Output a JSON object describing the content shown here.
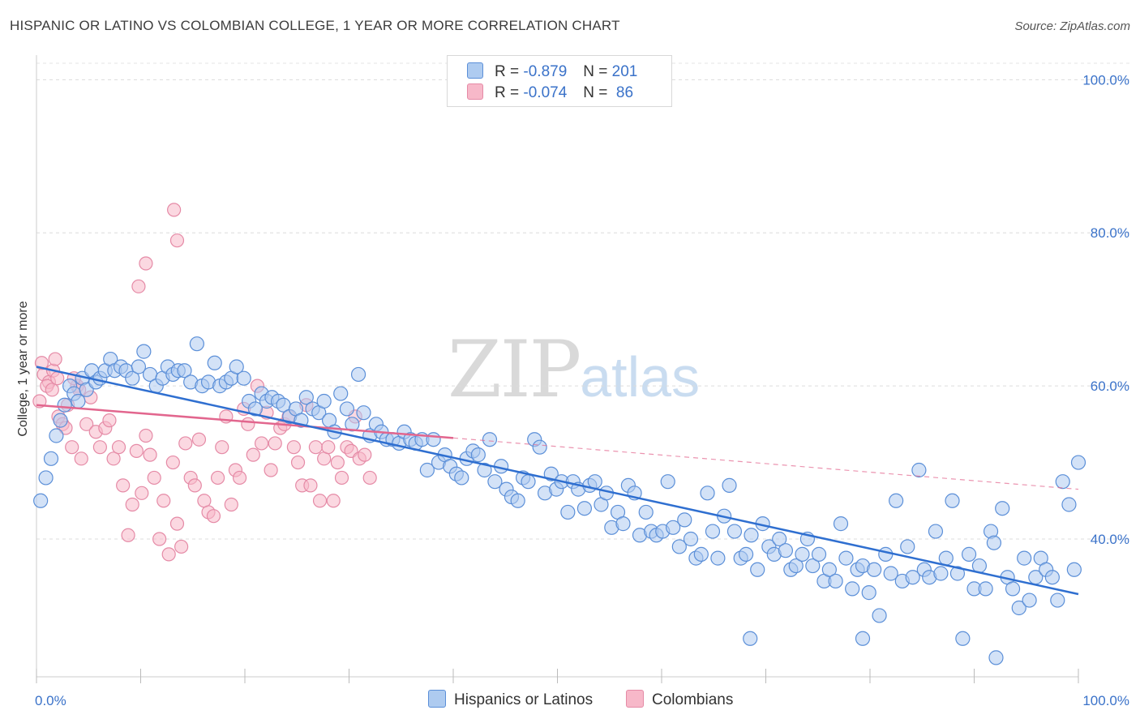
{
  "header": {
    "title": "HISPANIC OR LATINO VS COLOMBIAN COLLEGE, 1 YEAR OR MORE CORRELATION CHART",
    "source": "Source: ZipAtlas.com"
  },
  "watermark": {
    "zip": "ZIP",
    "atlas": "atlas"
  },
  "legend": {
    "rows": [
      {
        "r_label": "R =",
        "r_value": "-0.879",
        "n_label": "N =",
        "n_value": "201",
        "color": "#aecbf0"
      },
      {
        "r_label": "R =",
        "r_value": "-0.074",
        "n_label": "N =",
        "n_value": " 86",
        "color": "#f7b8c9"
      }
    ]
  },
  "bottom_legend": [
    {
      "label": "Hispanics or Latinos",
      "color": "#aecbf0"
    },
    {
      "label": "Colombians",
      "color": "#f7b8c9"
    }
  ],
  "chart_data": {
    "type": "scatter",
    "title": "HISPANIC OR LATINO VS COLOMBIAN COLLEGE, 1 YEAR OR MORE CORRELATION CHART",
    "xlabel": "",
    "ylabel": "College, 1 year or more",
    "xlim": [
      0,
      100
    ],
    "ylim": [
      22,
      103
    ],
    "x_tick_labels": [
      "0.0%",
      "100.0%"
    ],
    "y_ticks": [
      40,
      60,
      80,
      100
    ],
    "y_tick_labels": [
      "40.0%",
      "60.0%",
      "80.0%",
      "100.0%"
    ],
    "grid": "horizontal dashed",
    "legend_position": "top-center",
    "colors": {
      "blue_fill": "#aecbf0",
      "blue_stroke": "#5b8fd8",
      "blue_line": "#2f6fd0",
      "pink_fill": "#f7b8c9",
      "pink_stroke": "#e58aa6",
      "pink_line": "#e2668e"
    },
    "series": [
      {
        "name": "Hispanics or Latinos",
        "trend": {
          "x": [
            0,
            100
          ],
          "y": [
            62.5,
            32.8
          ]
        },
        "points": [
          [
            0.4,
            45
          ],
          [
            0.9,
            48
          ],
          [
            1.4,
            50.5
          ],
          [
            1.9,
            53.5
          ],
          [
            2.3,
            55.5
          ],
          [
            2.7,
            57.5
          ],
          [
            3.2,
            60
          ],
          [
            3.6,
            59
          ],
          [
            4,
            58
          ],
          [
            4.4,
            61
          ],
          [
            4.8,
            59.5
          ],
          [
            5.3,
            62
          ],
          [
            5.7,
            60.5
          ],
          [
            6.1,
            61
          ],
          [
            6.6,
            62
          ],
          [
            7.1,
            63.5
          ],
          [
            7.5,
            62
          ],
          [
            8.1,
            62.5
          ],
          [
            8.6,
            62
          ],
          [
            9.2,
            61
          ],
          [
            9.8,
            62.5
          ],
          [
            10.3,
            64.5
          ],
          [
            10.9,
            61.5
          ],
          [
            11.5,
            60
          ],
          [
            12.1,
            61
          ],
          [
            12.6,
            62.5
          ],
          [
            13.1,
            61.5
          ],
          [
            13.6,
            62
          ],
          [
            14.2,
            62
          ],
          [
            14.8,
            60.5
          ],
          [
            15.4,
            65.5
          ],
          [
            15.9,
            60
          ],
          [
            16.5,
            60.5
          ],
          [
            17.1,
            63
          ],
          [
            17.6,
            60
          ],
          [
            18.2,
            60.5
          ],
          [
            18.7,
            61
          ],
          [
            19.2,
            62.5
          ],
          [
            19.9,
            61
          ],
          [
            20.4,
            58
          ],
          [
            21,
            57
          ],
          [
            21.6,
            59
          ],
          [
            22.1,
            58
          ],
          [
            22.6,
            58.5
          ],
          [
            23.2,
            58
          ],
          [
            23.7,
            57.5
          ],
          [
            24.3,
            56
          ],
          [
            24.9,
            57
          ],
          [
            25.4,
            55.5
          ],
          [
            25.9,
            58.5
          ],
          [
            26.5,
            57
          ],
          [
            27.1,
            56.5
          ],
          [
            27.6,
            58
          ],
          [
            28.1,
            55.5
          ],
          [
            28.6,
            54
          ],
          [
            29.2,
            59
          ],
          [
            29.8,
            57
          ],
          [
            30.3,
            55
          ],
          [
            30.9,
            61.5
          ],
          [
            31.4,
            56.5
          ],
          [
            32,
            53.5
          ],
          [
            32.6,
            55
          ],
          [
            33.1,
            54
          ],
          [
            33.6,
            53
          ],
          [
            34.2,
            53
          ],
          [
            34.8,
            52.5
          ],
          [
            35.3,
            54
          ],
          [
            35.9,
            53
          ],
          [
            36.4,
            52.5
          ],
          [
            37,
            53
          ],
          [
            37.5,
            49
          ],
          [
            38.1,
            53
          ],
          [
            38.6,
            50
          ],
          [
            39.2,
            51
          ],
          [
            39.7,
            49.5
          ],
          [
            40.3,
            48.5
          ],
          [
            40.8,
            48
          ],
          [
            41.3,
            50.5
          ],
          [
            41.9,
            51.5
          ],
          [
            42.4,
            51
          ],
          [
            43,
            49
          ],
          [
            43.5,
            53
          ],
          [
            44,
            47.5
          ],
          [
            44.6,
            49.5
          ],
          [
            45.1,
            46.5
          ],
          [
            45.6,
            45.5
          ],
          [
            46.2,
            45
          ],
          [
            46.7,
            48
          ],
          [
            47.2,
            47.5
          ],
          [
            47.8,
            53
          ],
          [
            48.3,
            52
          ],
          [
            48.8,
            46
          ],
          [
            49.4,
            48.5
          ],
          [
            49.9,
            46.5
          ],
          [
            50.4,
            47.5
          ],
          [
            51,
            43.5
          ],
          [
            51.5,
            47.5
          ],
          [
            52,
            46.5
          ],
          [
            52.6,
            44
          ],
          [
            53.1,
            47
          ],
          [
            53.6,
            47.5
          ],
          [
            54.2,
            44.5
          ],
          [
            54.7,
            46
          ],
          [
            55.2,
            41.5
          ],
          [
            55.8,
            43.5
          ],
          [
            56.3,
            42
          ],
          [
            56.8,
            47
          ],
          [
            57.4,
            46
          ],
          [
            57.9,
            40.5
          ],
          [
            58.5,
            43.5
          ],
          [
            59,
            41
          ],
          [
            59.5,
            40.5
          ],
          [
            60.1,
            41
          ],
          [
            60.6,
            47.5
          ],
          [
            61.1,
            41.5
          ],
          [
            61.7,
            39
          ],
          [
            62.2,
            42.5
          ],
          [
            62.8,
            40
          ],
          [
            63.3,
            37.5
          ],
          [
            63.8,
            38
          ],
          [
            64.4,
            46
          ],
          [
            64.9,
            41
          ],
          [
            65.4,
            37.5
          ],
          [
            66,
            43
          ],
          [
            66.5,
            47
          ],
          [
            67,
            41
          ],
          [
            67.6,
            37.5
          ],
          [
            68.1,
            38
          ],
          [
            68.6,
            40.5
          ],
          [
            69.2,
            36
          ],
          [
            69.7,
            42
          ],
          [
            70.3,
            39
          ],
          [
            70.8,
            38
          ],
          [
            71.3,
            40
          ],
          [
            71.9,
            38.5
          ],
          [
            72.4,
            36
          ],
          [
            72.9,
            36.5
          ],
          [
            73.5,
            38
          ],
          [
            74,
            40
          ],
          [
            74.5,
            36.5
          ],
          [
            75.1,
            38
          ],
          [
            75.6,
            34.5
          ],
          [
            76.1,
            36
          ],
          [
            76.7,
            34.5
          ],
          [
            77.2,
            42
          ],
          [
            77.7,
            37.5
          ],
          [
            78.3,
            33.5
          ],
          [
            78.8,
            36
          ],
          [
            79.3,
            36.5
          ],
          [
            79.9,
            33
          ],
          [
            80.4,
            36
          ],
          [
            80.9,
            30
          ],
          [
            81.5,
            38
          ],
          [
            82,
            35.5
          ],
          [
            82.5,
            45
          ],
          [
            83.1,
            34.5
          ],
          [
            83.6,
            39
          ],
          [
            84.1,
            35
          ],
          [
            84.7,
            49
          ],
          [
            85.2,
            36
          ],
          [
            85.7,
            35
          ],
          [
            86.3,
            41
          ],
          [
            86.8,
            35.5
          ],
          [
            87.3,
            37.5
          ],
          [
            87.9,
            45
          ],
          [
            88.4,
            35.5
          ],
          [
            88.9,
            27
          ],
          [
            89.5,
            38
          ],
          [
            90,
            33.5
          ],
          [
            90.5,
            36.5
          ],
          [
            91.1,
            33.5
          ],
          [
            91.6,
            41
          ],
          [
            92.1,
            24.5
          ],
          [
            92.7,
            44
          ],
          [
            93.2,
            35
          ],
          [
            93.7,
            33.5
          ],
          [
            94.3,
            31
          ],
          [
            94.8,
            37.5
          ],
          [
            95.3,
            32
          ],
          [
            95.9,
            35
          ],
          [
            96.4,
            37.5
          ],
          [
            96.9,
            36
          ],
          [
            97.5,
            35
          ],
          [
            98,
            32
          ],
          [
            98.5,
            47.5
          ],
          [
            99.1,
            44.5
          ],
          [
            99.6,
            36
          ],
          [
            100,
            50
          ],
          [
            91.9,
            39.5
          ],
          [
            79.3,
            27
          ],
          [
            68.5,
            27
          ]
        ]
      },
      {
        "name": "Colombians",
        "trend": {
          "x": [
            0,
            40
          ],
          "y": [
            57.5,
            53.2
          ]
        },
        "trend_extension": {
          "x": [
            40,
            100
          ],
          "y": [
            53.2,
            46.5
          ]
        },
        "points": [
          [
            0.3,
            58
          ],
          [
            0.7,
            61.5
          ],
          [
            1.2,
            60.5
          ],
          [
            1.6,
            62
          ],
          [
            2.1,
            56
          ],
          [
            2.5,
            55
          ],
          [
            3,
            57.5
          ],
          [
            3.4,
            52
          ],
          [
            3.9,
            60
          ],
          [
            4.3,
            50.5
          ],
          [
            4.8,
            55
          ],
          [
            5.2,
            58.5
          ],
          [
            5.7,
            54
          ],
          [
            6.1,
            52
          ],
          [
            6.6,
            54.5
          ],
          [
            7,
            55.5
          ],
          [
            7.4,
            50.5
          ],
          [
            7.9,
            52
          ],
          [
            8.3,
            47
          ],
          [
            8.8,
            40.5
          ],
          [
            9.2,
            44.5
          ],
          [
            9.6,
            51.5
          ],
          [
            10.1,
            46
          ],
          [
            10.5,
            53.5
          ],
          [
            10.9,
            51
          ],
          [
            11.3,
            48
          ],
          [
            11.8,
            40
          ],
          [
            12.2,
            45
          ],
          [
            12.7,
            38
          ],
          [
            13.1,
            50
          ],
          [
            13.5,
            42
          ],
          [
            13.9,
            39
          ],
          [
            14.3,
            52.5
          ],
          [
            14.8,
            48
          ],
          [
            15.2,
            47
          ],
          [
            15.6,
            53
          ],
          [
            16.1,
            45
          ],
          [
            16.5,
            43.5
          ],
          [
            17,
            43
          ],
          [
            17.4,
            48
          ],
          [
            17.8,
            52
          ],
          [
            18.2,
            56
          ],
          [
            18.7,
            44.5
          ],
          [
            19.1,
            49
          ],
          [
            19.5,
            48
          ],
          [
            19.9,
            57
          ],
          [
            20.3,
            55
          ],
          [
            20.8,
            51
          ],
          [
            21.2,
            60
          ],
          [
            21.6,
            52.5
          ],
          [
            22.1,
            56.5
          ],
          [
            22.5,
            49
          ],
          [
            22.9,
            52.5
          ],
          [
            23.4,
            54.5
          ],
          [
            23.8,
            55
          ],
          [
            24.2,
            56
          ],
          [
            24.7,
            52
          ],
          [
            25.1,
            50
          ],
          [
            25.5,
            47
          ],
          [
            25.9,
            57.5
          ],
          [
            26.3,
            47
          ],
          [
            26.8,
            52
          ],
          [
            27.2,
            45
          ],
          [
            27.6,
            50.5
          ],
          [
            28,
            52
          ],
          [
            28.5,
            45
          ],
          [
            28.9,
            50
          ],
          [
            29.3,
            48
          ],
          [
            29.8,
            52
          ],
          [
            30.2,
            51.5
          ],
          [
            30.6,
            56
          ],
          [
            31,
            50.5
          ],
          [
            31.5,
            51
          ],
          [
            32,
            48
          ],
          [
            1,
            60
          ],
          [
            1.5,
            59.5
          ],
          [
            2,
            61
          ],
          [
            2.8,
            54.5
          ],
          [
            3.6,
            61
          ],
          [
            4.1,
            59.5
          ],
          [
            0.5,
            63
          ],
          [
            1.8,
            63.5
          ],
          [
            13.2,
            83
          ],
          [
            13.5,
            79
          ],
          [
            10.5,
            76
          ],
          [
            9.8,
            73
          ]
        ]
      }
    ]
  }
}
